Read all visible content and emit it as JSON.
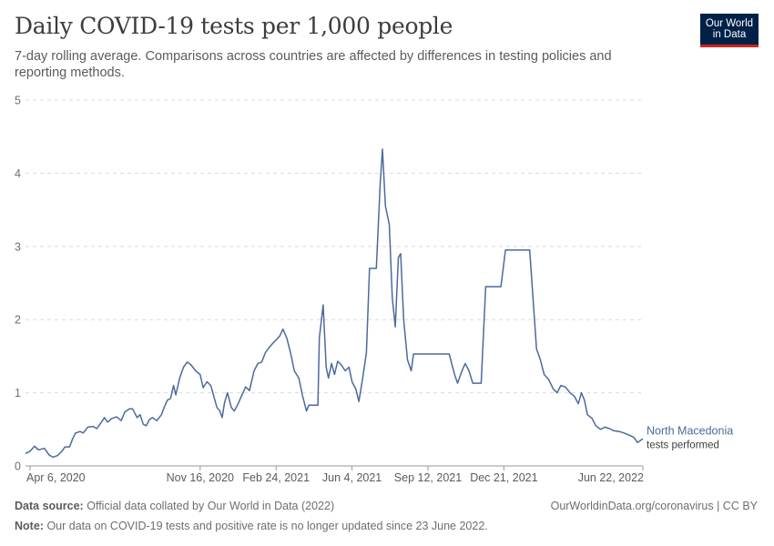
{
  "header": {
    "title": "Daily COVID-19 tests per 1,000 people",
    "subtitle": "7-day rolling average. Comparisons across countries are affected by differences in testing policies and reporting methods."
  },
  "logo": {
    "line1": "Our World",
    "line2": "in Data"
  },
  "footer": {
    "source_label": "Data source:",
    "source_text": "Official data collated by Our World in Data (2022)",
    "note_label": "Note:",
    "note_text": "Our data on COVID-19 tests and positive rate is no longer updated since 23 June 2022.",
    "credit": "OurWorldinData.org/coronavirus | CC BY"
  },
  "chart_data": {
    "type": "line",
    "title": "Daily COVID-19 tests per 1,000 people",
    "ylim": [
      0,
      5
    ],
    "xlim": [
      "2020-03-31",
      "2022-06-22"
    ],
    "y_ticks": [
      0,
      1,
      2,
      3,
      4,
      5
    ],
    "y_tick_labels": [
      "0",
      "1",
      "2",
      "3",
      "4",
      "5"
    ],
    "x_ticks": [
      "2020-04-06",
      "2020-11-16",
      "2021-02-24",
      "2021-06-04",
      "2021-09-12",
      "2021-12-21",
      "2022-06-22"
    ],
    "x_tick_labels": [
      "Apr 6, 2020",
      "Nov 16, 2020",
      "Feb 24, 2021",
      "Jun 4, 2021",
      "Sep 12, 2021",
      "Dec 21, 2021",
      "Jun 22, 2022"
    ],
    "grid": "horizontal dashed",
    "legend": "end-of-line label",
    "series": [
      {
        "name": "North Macedonia",
        "sublabel": "tests performed",
        "color": "#4c6a9c",
        "points": [
          [
            "2020-03-31",
            0.17
          ],
          [
            "2020-04-06",
            0.2
          ],
          [
            "2020-04-12",
            0.27
          ],
          [
            "2020-04-17",
            0.22
          ],
          [
            "2020-04-25",
            0.24
          ],
          [
            "2020-05-01",
            0.15
          ],
          [
            "2020-05-06",
            0.12
          ],
          [
            "2020-05-12",
            0.14
          ],
          [
            "2020-05-18",
            0.2
          ],
          [
            "2020-05-22",
            0.26
          ],
          [
            "2020-05-28",
            0.26
          ],
          [
            "2020-06-01",
            0.37
          ],
          [
            "2020-06-05",
            0.45
          ],
          [
            "2020-06-11",
            0.47
          ],
          [
            "2020-06-15",
            0.45
          ],
          [
            "2020-06-21",
            0.53
          ],
          [
            "2020-06-28",
            0.54
          ],
          [
            "2020-07-03",
            0.51
          ],
          [
            "2020-07-09",
            0.6
          ],
          [
            "2020-07-13",
            0.66
          ],
          [
            "2020-07-17",
            0.6
          ],
          [
            "2020-07-23",
            0.65
          ],
          [
            "2020-07-29",
            0.67
          ],
          [
            "2020-08-04",
            0.62
          ],
          [
            "2020-08-09",
            0.74
          ],
          [
            "2020-08-15",
            0.78
          ],
          [
            "2020-08-19",
            0.78
          ],
          [
            "2020-08-25",
            0.66
          ],
          [
            "2020-08-29",
            0.7
          ],
          [
            "2020-09-02",
            0.57
          ],
          [
            "2020-09-06",
            0.55
          ],
          [
            "2020-09-10",
            0.63
          ],
          [
            "2020-09-14",
            0.66
          ],
          [
            "2020-09-20",
            0.62
          ],
          [
            "2020-09-26",
            0.7
          ],
          [
            "2020-09-30",
            0.81
          ],
          [
            "2020-10-04",
            0.9
          ],
          [
            "2020-10-08",
            0.92
          ],
          [
            "2020-10-12",
            1.1
          ],
          [
            "2020-10-15",
            0.97
          ],
          [
            "2020-10-20",
            1.2
          ],
          [
            "2020-10-25",
            1.35
          ],
          [
            "2020-10-30",
            1.42
          ],
          [
            "2020-11-04",
            1.38
          ],
          [
            "2020-11-10",
            1.3
          ],
          [
            "2020-11-16",
            1.25
          ],
          [
            "2020-11-20",
            1.07
          ],
          [
            "2020-11-25",
            1.15
          ],
          [
            "2020-11-30",
            1.1
          ],
          [
            "2020-12-04",
            0.95
          ],
          [
            "2020-12-08",
            0.8
          ],
          [
            "2020-12-12",
            0.75
          ],
          [
            "2020-12-15",
            0.66
          ],
          [
            "2020-12-18",
            0.86
          ],
          [
            "2020-12-22",
            1.0
          ],
          [
            "2020-12-27",
            0.8
          ],
          [
            "2020-12-31",
            0.75
          ],
          [
            "2021-01-05",
            0.85
          ],
          [
            "2021-01-10",
            0.97
          ],
          [
            "2021-01-15",
            1.08
          ],
          [
            "2021-01-20",
            1.03
          ],
          [
            "2021-01-26",
            1.3
          ],
          [
            "2021-01-31",
            1.4
          ],
          [
            "2021-02-05",
            1.42
          ],
          [
            "2021-02-10",
            1.55
          ],
          [
            "2021-02-15",
            1.62
          ],
          [
            "2021-02-20",
            1.68
          ],
          [
            "2021-02-24",
            1.72
          ],
          [
            "2021-03-01",
            1.78
          ],
          [
            "2021-03-05",
            1.87
          ],
          [
            "2021-03-10",
            1.75
          ],
          [
            "2021-03-15",
            1.55
          ],
          [
            "2021-03-20",
            1.3
          ],
          [
            "2021-03-26",
            1.2
          ],
          [
            "2021-03-31",
            0.95
          ],
          [
            "2021-04-05",
            0.75
          ],
          [
            "2021-04-08",
            0.83
          ],
          [
            "2021-04-20",
            0.83
          ],
          [
            "2021-04-22",
            1.75
          ],
          [
            "2021-04-27",
            2.2
          ],
          [
            "2021-05-01",
            1.35
          ],
          [
            "2021-05-04",
            1.2
          ],
          [
            "2021-05-08",
            1.4
          ],
          [
            "2021-05-12",
            1.25
          ],
          [
            "2021-05-16",
            1.43
          ],
          [
            "2021-05-21",
            1.38
          ],
          [
            "2021-05-26",
            1.3
          ],
          [
            "2021-05-31",
            1.35
          ],
          [
            "2021-06-04",
            1.15
          ],
          [
            "2021-06-09",
            1.05
          ],
          [
            "2021-06-13",
            0.88
          ],
          [
            "2021-06-18",
            1.2
          ],
          [
            "2021-06-23",
            1.55
          ],
          [
            "2021-06-27",
            2.7
          ],
          [
            "2021-07-06",
            2.7
          ],
          [
            "2021-07-11",
            3.85
          ],
          [
            "2021-07-14",
            4.33
          ],
          [
            "2021-07-18",
            3.55
          ],
          [
            "2021-07-23",
            3.3
          ],
          [
            "2021-07-27",
            2.3
          ],
          [
            "2021-07-31",
            1.9
          ],
          [
            "2021-08-04",
            2.85
          ],
          [
            "2021-08-07",
            2.9
          ],
          [
            "2021-08-11",
            2.0
          ],
          [
            "2021-08-16",
            1.45
          ],
          [
            "2021-08-21",
            1.3
          ],
          [
            "2021-08-24",
            1.53
          ],
          [
            "2021-09-12",
            1.53
          ],
          [
            "2021-10-10",
            1.53
          ],
          [
            "2021-10-17",
            1.25
          ],
          [
            "2021-10-21",
            1.13
          ],
          [
            "2021-10-26",
            1.28
          ],
          [
            "2021-10-31",
            1.4
          ],
          [
            "2021-11-05",
            1.3
          ],
          [
            "2021-11-10",
            1.13
          ],
          [
            "2021-11-21",
            1.13
          ],
          [
            "2021-11-27",
            2.45
          ],
          [
            "2021-12-17",
            2.45
          ],
          [
            "2021-12-23",
            2.95
          ],
          [
            "2022-01-24",
            2.95
          ],
          [
            "2022-02-02",
            1.6
          ],
          [
            "2022-02-07",
            1.45
          ],
          [
            "2022-02-12",
            1.25
          ],
          [
            "2022-02-18",
            1.18
          ],
          [
            "2022-02-24",
            1.05
          ],
          [
            "2022-03-01",
            1.0
          ],
          [
            "2022-03-06",
            1.1
          ],
          [
            "2022-03-12",
            1.08
          ],
          [
            "2022-03-18",
            1.0
          ],
          [
            "2022-03-24",
            0.95
          ],
          [
            "2022-03-29",
            0.85
          ],
          [
            "2022-04-02",
            1.0
          ],
          [
            "2022-04-06",
            0.9
          ],
          [
            "2022-04-10",
            0.7
          ],
          [
            "2022-04-16",
            0.65
          ],
          [
            "2022-04-21",
            0.55
          ],
          [
            "2022-04-27",
            0.5
          ],
          [
            "2022-05-03",
            0.53
          ],
          [
            "2022-05-09",
            0.51
          ],
          [
            "2022-05-15",
            0.48
          ],
          [
            "2022-05-22",
            0.47
          ],
          [
            "2022-05-28",
            0.45
          ],
          [
            "2022-06-04",
            0.42
          ],
          [
            "2022-06-10",
            0.39
          ],
          [
            "2022-06-15",
            0.32
          ],
          [
            "2022-06-19",
            0.35
          ],
          [
            "2022-06-22",
            0.37
          ]
        ]
      }
    ]
  }
}
